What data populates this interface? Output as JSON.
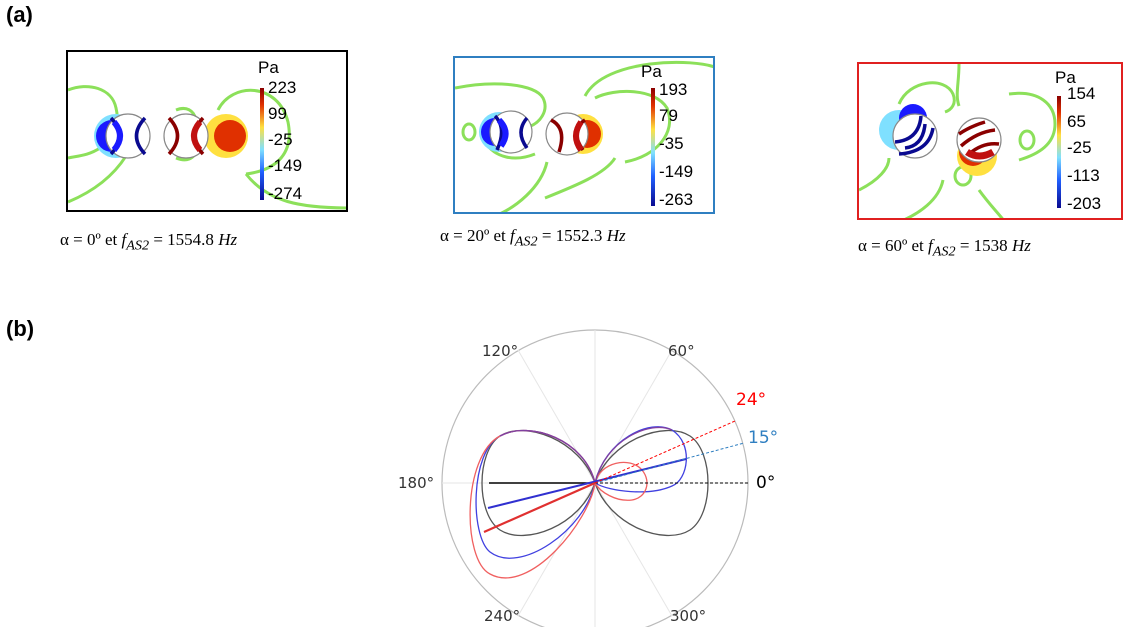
{
  "panel_a_label": "(a)",
  "panel_b_label": "(b)",
  "colors": {
    "frame_0": "#000000",
    "frame_20": "#2f7fc1",
    "frame_60": "#e02020",
    "contour_green": "#8ce05a",
    "curve_black": "#555555",
    "curve_blue": "#4040e0",
    "curve_red": "#f06060",
    "annot_red": "#ff0000",
    "annot_blue": "#2f7fc1"
  },
  "panels": [
    {
      "unit": "Pa",
      "ticks": [
        "223",
        "99",
        "-25",
        "-149",
        "-274"
      ],
      "caption": {
        "prefix": "α = 0º et ",
        "f": "f",
        "sub": "AS2",
        "rest": " = 1554.8 ",
        "unit": "Hz"
      }
    },
    {
      "unit": "Pa",
      "ticks": [
        "193",
        "79",
        "-35",
        "-149",
        "-263"
      ],
      "caption": {
        "prefix": "α = 20º et ",
        "f": "f",
        "sub": "AS2",
        "rest": " = 1552.3 ",
        "unit": "Hz"
      }
    },
    {
      "unit": "Pa",
      "ticks": [
        "154",
        "65",
        "-25",
        "-113",
        "-203"
      ],
      "caption": {
        "prefix": "α = 60º et ",
        "f": "f",
        "sub": "AS2",
        "rest": " = 1538 ",
        "unit": "Hz"
      }
    }
  ],
  "polar": {
    "angle_labels": [
      "60°",
      "120°",
      "180°",
      "240°",
      "300°"
    ],
    "annotations": [
      {
        "text": "24°",
        "angle_deg": 24,
        "color": "#ff0000"
      },
      {
        "text": "15°",
        "angle_deg": 15,
        "color": "#2f7fc1"
      },
      {
        "text": "0°",
        "angle_deg": 0,
        "color": "#000000"
      }
    ]
  }
}
